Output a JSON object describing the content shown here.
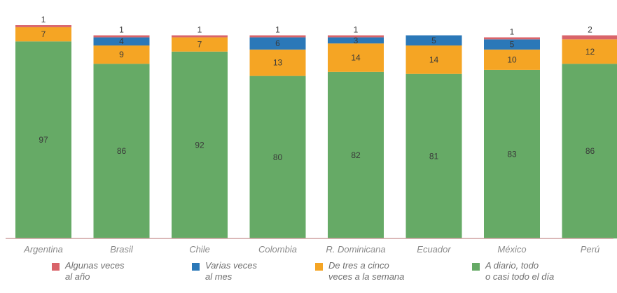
{
  "chart_data": {
    "type": "bar",
    "stacked": true,
    "categories": [
      "Argentina",
      "Brasil",
      "Chile",
      "Colombia",
      "R. Dominicana",
      "Ecuador",
      "México",
      "Perú"
    ],
    "series": [
      {
        "name": "A diario, todo\no casi todo el día",
        "color": "#66aa66",
        "values": [
          97,
          86,
          92,
          80,
          82,
          81,
          83,
          86
        ]
      },
      {
        "name": "De tres a cinco\nveces a la semana",
        "color": "#f5a524",
        "values": [
          7,
          9,
          7,
          13,
          14,
          14,
          10,
          12
        ]
      },
      {
        "name": "Varias veces\nal mes",
        "color": "#2b78b8",
        "values": [
          null,
          4,
          null,
          6,
          3,
          5,
          5,
          null
        ]
      },
      {
        "name": "Algunas veces\nal año",
        "color": "#d9646a",
        "values": [
          1,
          1,
          1,
          1,
          1,
          null,
          1,
          2
        ]
      }
    ],
    "ylim": [
      0,
      100
    ],
    "grid": false,
    "legend_position": "bottom"
  }
}
